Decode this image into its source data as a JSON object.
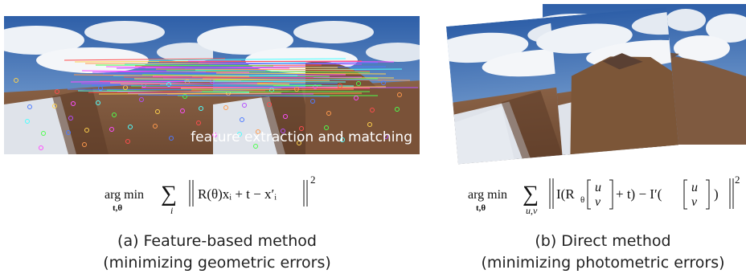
{
  "figure": {
    "panel_a": {
      "overlay": "feature extraction and matching",
      "formula": {
        "operator": "arg min",
        "operator_sub": "t,θ",
        "sum": "∑",
        "sum_index": "i",
        "body": "R(θ)xᵢ + t − x′ᵢ",
        "norm_power": "2"
      },
      "caption": [
        "(a) Feature-based  method",
        "(minimizing  geometric errors)"
      ]
    },
    "panel_b": {
      "formula": {
        "operator": "arg min",
        "operator_sub": "t,θ",
        "sum": "∑",
        "sum_index": "u,v",
        "body_start": "I(R",
        "rot_sub": "θ",
        "vec1": [
          "u",
          "v"
        ],
        "body_mid": "+ t) − I′(",
        "vec2": [
          "u",
          "v"
        ],
        "body_end": ")",
        "norm_power": "2"
      },
      "caption": [
        "(b)  Direct  method",
        "(minimizing  photometric errors)"
      ]
    }
  }
}
